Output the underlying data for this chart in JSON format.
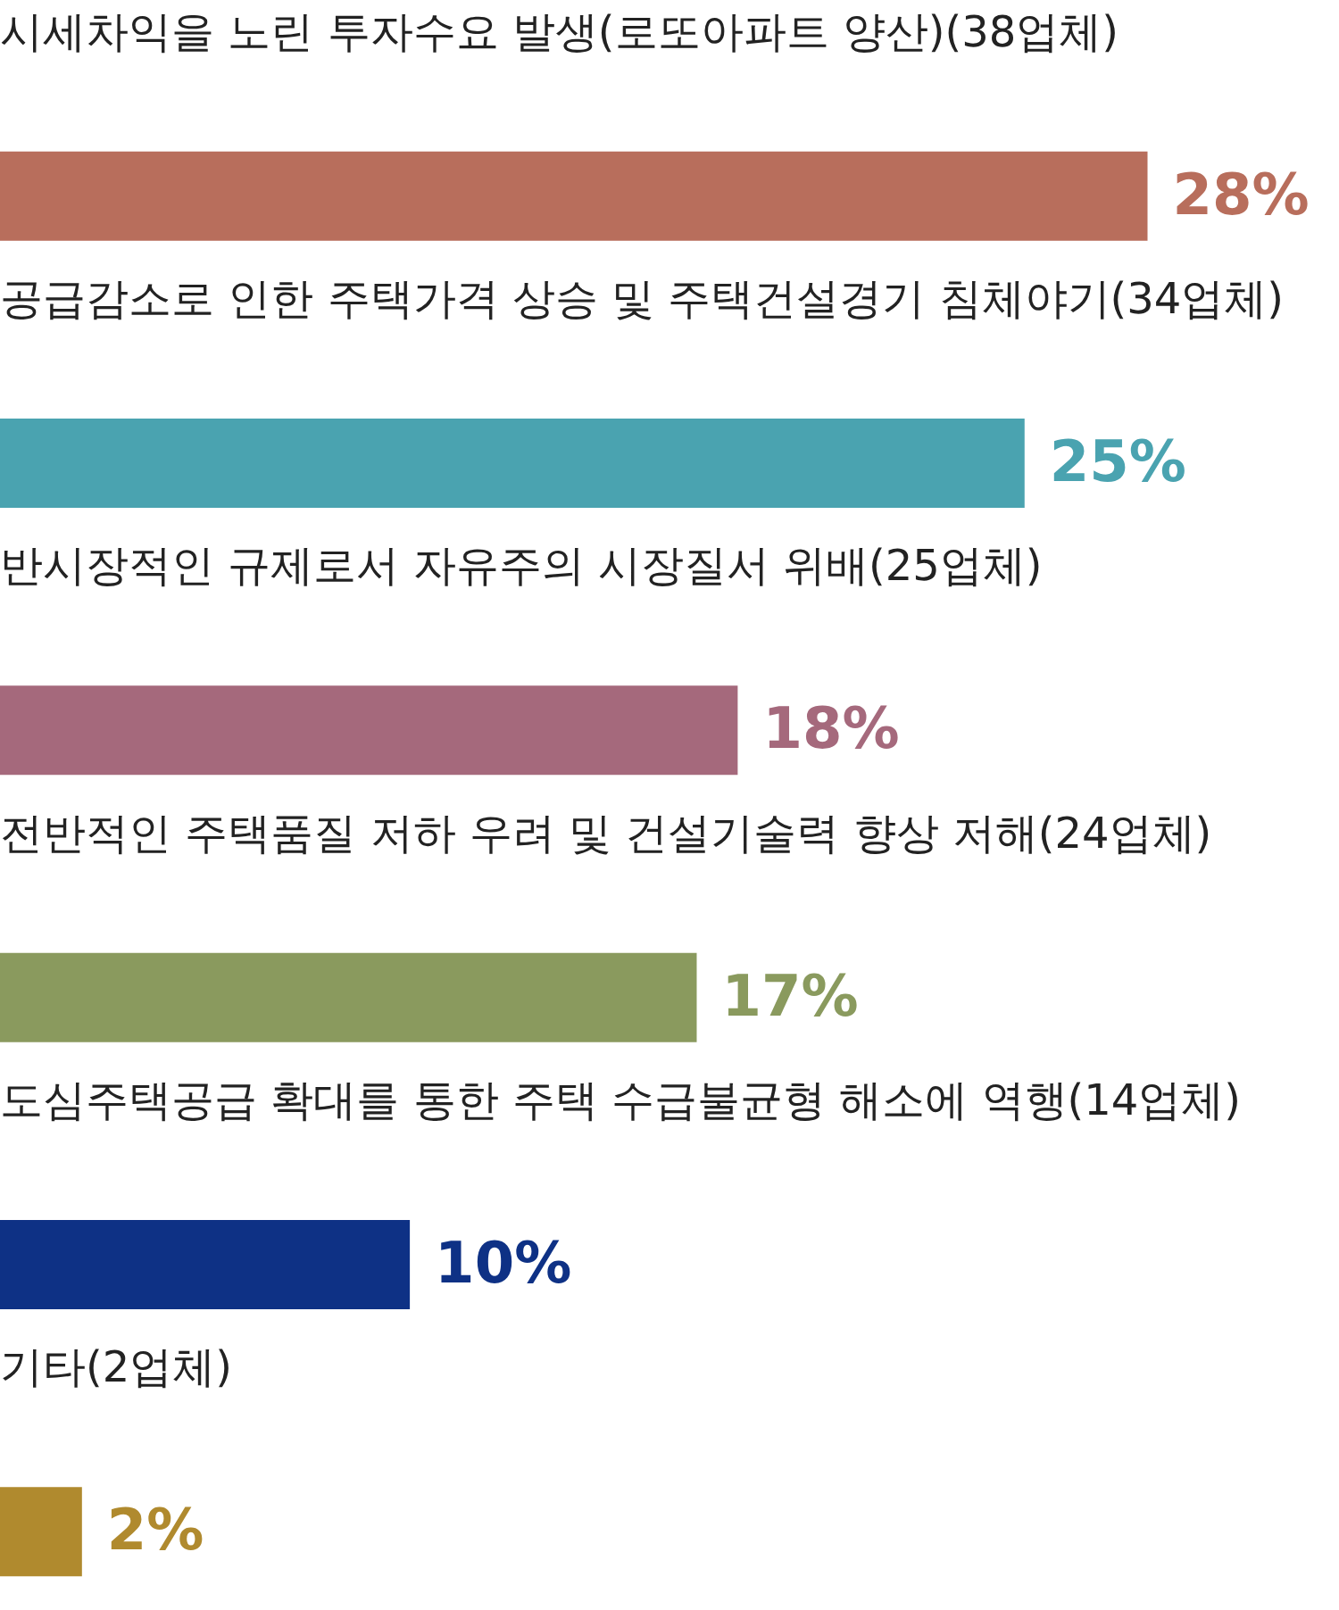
{
  "chart_data": {
    "type": "bar",
    "orientation": "horizontal",
    "categories": [
      "시세차익을 노린 투자수요 발생(로또아파트 양산)(38업체)",
      "공급감소로 인한 주택가격 상승 및 주택건설경기 침체야기(34업체)",
      "반시장적인 규제로서 자유주의 시장질서 위배(25업체)",
      "전반적인 주택품질 저하 우려 및 건설기술력 향상 저해(24업체)",
      "도심주택공급 확대를 통한 주택 수급불균형 해소에 역행(14업체)",
      "기타(2업체)"
    ],
    "values": [
      28,
      25,
      18,
      17,
      10,
      2
    ],
    "colors": [
      "#b86e5c",
      "#4aa3b0",
      "#a5697c",
      "#8a9a5e",
      "#0e3185",
      "#b08a2e"
    ],
    "value_labels": [
      "28%",
      "25%",
      "18%",
      "17%",
      "10%",
      "2%"
    ]
  }
}
